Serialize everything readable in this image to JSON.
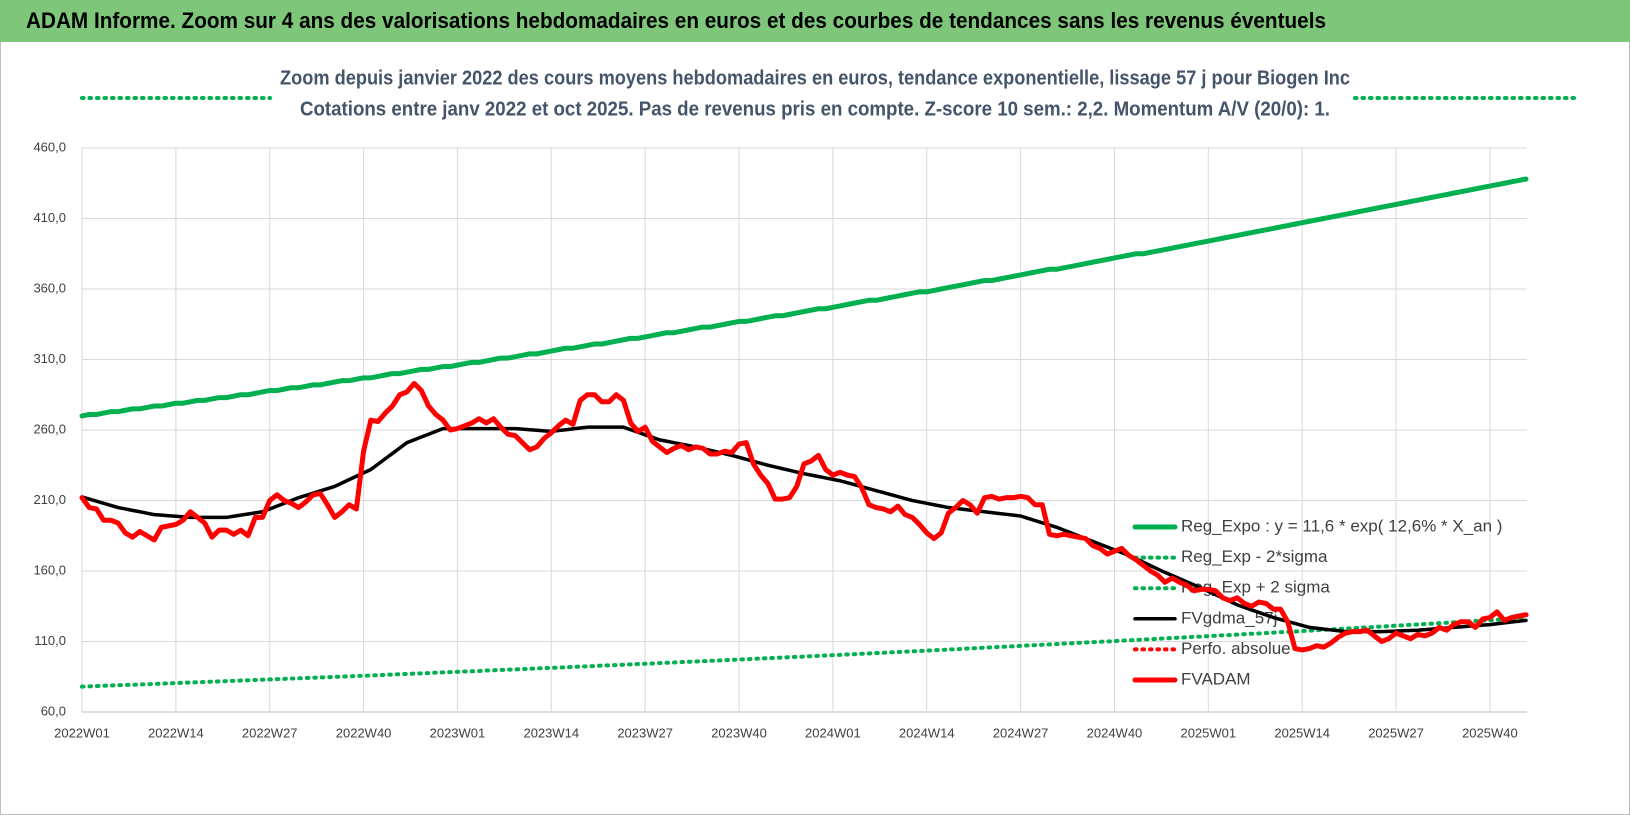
{
  "chart_data": {
    "type": "line",
    "title": "ADAM Informe. Zoom sur 4 ans des valorisations hebdomadaires en euros et des courbes de tendances sans les revenus éventuels",
    "subtitle": [
      "Zoom depuis janvier 2022 des cours moyens hebdomadaires en euros, tendance exponentielle, lissage 57 j pour Biogen Inc",
      "Cotations entre janv 2022 et oct 2025. Pas de revenus pris en compte. Z-score 10 sem.: 2,2. Momentum A/V (20/0): 1."
    ],
    "categories": [
      "2022W01",
      null,
      null,
      null,
      null,
      null,
      null,
      null,
      null,
      null,
      null,
      null,
      null,
      "2022W14",
      null,
      null,
      null,
      null,
      null,
      null,
      null,
      null,
      null,
      null,
      null,
      null,
      "2022W27",
      null,
      null,
      null,
      null,
      null,
      null,
      null,
      null,
      null,
      null,
      null,
      null,
      "2022W40",
      null,
      null,
      null,
      null,
      null,
      null,
      null,
      null,
      null,
      null,
      null,
      null,
      "2023W01",
      null,
      null,
      null,
      null,
      null,
      null,
      null,
      null,
      null,
      null,
      null,
      null,
      "2023W14",
      null,
      null,
      null,
      null,
      null,
      null,
      null,
      null,
      null,
      null,
      null,
      null,
      "2023W27",
      null,
      null,
      null,
      null,
      null,
      null,
      null,
      null,
      null,
      null,
      null,
      null,
      "2023W40",
      null,
      null,
      null,
      null,
      null,
      null,
      null,
      null,
      null,
      null,
      null,
      null,
      "2024W01",
      null,
      null,
      null,
      null,
      null,
      null,
      null,
      null,
      null,
      null,
      null,
      null,
      "2024W14",
      null,
      null,
      null,
      null,
      null,
      null,
      null,
      null,
      null,
      null,
      null,
      null,
      "2024W27",
      null,
      null,
      null,
      null,
      null,
      null,
      null,
      null,
      null,
      null,
      null,
      null,
      "2024W40",
      null,
      null,
      null,
      null,
      null,
      null,
      null,
      null,
      null,
      null,
      null,
      null,
      "2025W01",
      null,
      null,
      null,
      null,
      null,
      null,
      null,
      null,
      null,
      null,
      null,
      null,
      "2025W14",
      null,
      null,
      null,
      null,
      null,
      null,
      null,
      null,
      null,
      null,
      null,
      null,
      "2025W27",
      null,
      null,
      null,
      null,
      null,
      null,
      null,
      null,
      null,
      null,
      null,
      null,
      "2025W40",
      null,
      null,
      null,
      null,
      null
    ],
    "ylim": [
      60,
      460
    ],
    "yticks": [
      {
        "value": 60,
        "label": "60,0"
      },
      {
        "value": 110,
        "label": "110,0"
      },
      {
        "value": 160,
        "label": "160,0"
      },
      {
        "value": 210,
        "label": "210,0"
      },
      {
        "value": 260,
        "label": "260,0"
      },
      {
        "value": 310,
        "label": "310,0"
      },
      {
        "value": 360,
        "label": "360,0"
      },
      {
        "value": 410,
        "label": "410,0"
      },
      {
        "value": 460,
        "label": "460,0"
      }
    ],
    "grid": true,
    "legend": "right",
    "series": [
      {
        "name": "Reg_Expo : y = 11,6 * exp( 12,6% *  X_an )",
        "color": "#00b050",
        "style": "solid",
        "width": 5,
        "values": [
          270,
          271,
          271,
          272,
          273,
          273,
          274,
          275,
          275,
          276,
          277,
          277,
          278,
          279,
          279,
          280,
          281,
          281,
          282,
          283,
          283,
          284,
          285,
          285,
          286,
          287,
          288,
          288,
          289,
          290,
          290,
          291,
          292,
          292,
          293,
          294,
          295,
          295,
          296,
          297,
          297,
          298,
          299,
          300,
          300,
          301,
          302,
          303,
          303,
          304,
          305,
          305,
          306,
          307,
          308,
          308,
          309,
          310,
          311,
          311,
          312,
          313,
          314,
          314,
          315,
          316,
          317,
          318,
          318,
          319,
          320,
          321,
          321,
          322,
          323,
          324,
          325,
          325,
          326,
          327,
          328,
          329,
          329,
          330,
          331,
          332,
          333,
          333,
          334,
          335,
          336,
          337,
          337,
          338,
          339,
          340,
          341,
          341,
          342,
          343,
          344,
          345,
          346,
          346,
          347,
          348,
          349,
          350,
          351,
          352,
          352,
          353,
          354,
          355,
          356,
          357,
          358,
          358,
          359,
          360,
          361,
          362,
          363,
          364,
          365,
          366,
          366,
          367,
          368,
          369,
          370,
          371,
          372,
          373,
          374,
          374,
          375,
          376,
          377,
          378,
          379,
          380,
          381,
          382,
          383,
          384,
          385,
          385,
          386,
          387,
          388,
          389,
          390,
          391,
          392,
          393,
          394,
          395,
          396,
          397,
          398,
          399,
          400,
          401,
          402,
          403,
          404,
          405,
          406,
          407,
          408,
          409,
          410,
          411,
          412,
          413,
          414,
          415,
          416,
          417,
          418,
          419,
          420,
          421,
          422,
          423,
          424,
          425,
          426,
          427,
          428,
          429,
          430,
          431,
          432,
          433,
          434,
          435,
          436,
          437,
          438
        ]
      },
      {
        "name": "Reg_Exp - 2*sigma",
        "color": "#00b050",
        "style": "dotted",
        "width": 4,
        "values": [
          78.0,
          78.2,
          78.4,
          78.6,
          78.8,
          79.0,
          79.2,
          79.3,
          79.5,
          79.7,
          79.9,
          80.1,
          80.3,
          80.5,
          80.7,
          80.9,
          81.1,
          81.3,
          81.5,
          81.7,
          81.9,
          82.1,
          82.3,
          82.5,
          82.7,
          82.9,
          83.1,
          83.3,
          83.5,
          83.7,
          83.9,
          84.1,
          84.3,
          84.5,
          84.7,
          84.9,
          85.1,
          85.3,
          85.5,
          85.7,
          85.9,
          86.1,
          86.3,
          86.6,
          86.8,
          87.0,
          87.2,
          87.4,
          87.6,
          87.9,
          88.1,
          88.3,
          88.5,
          88.7,
          88.9,
          89.1,
          89.4,
          89.6,
          89.8,
          90.0,
          90.2,
          90.4,
          90.7,
          90.9,
          91.1,
          91.3,
          91.5,
          91.7,
          92.0,
          92.2,
          92.4,
          92.6,
          92.9,
          93.1,
          93.3,
          93.5,
          93.8,
          94.0,
          94.2,
          94.4,
          94.7,
          94.9,
          95.1,
          95.4,
          95.6,
          95.8,
          96.0,
          96.3,
          96.5,
          96.7,
          97.0,
          97.2,
          97.4,
          97.7,
          97.9,
          98.2,
          98.4,
          98.6,
          98.9,
          99.1,
          99.3,
          99.6,
          99.8,
          100.1,
          100.3,
          100.5,
          100.8,
          101.0,
          101.3,
          101.5,
          101.8,
          102.0,
          102.3,
          102.5,
          102.8,
          103.0,
          103.3,
          103.5,
          103.8,
          104.0,
          104.3,
          104.5,
          104.8,
          105.1,
          105.3,
          105.6,
          105.9,
          106.1,
          106.4,
          106.6,
          106.9,
          107.2,
          107.4,
          107.7,
          107.9,
          108.2,
          108.5,
          108.7,
          109.0,
          109.3,
          109.5,
          109.8,
          110.0,
          110.3,
          110.6,
          110.8,
          111.1,
          111.4,
          111.6,
          111.9,
          112.2,
          112.5,
          112.7,
          113.0,
          113.3,
          113.5,
          113.8,
          114.1,
          114.4,
          114.6,
          114.9,
          115.2,
          115.5,
          115.7,
          116.0,
          116.3,
          116.6,
          116.8,
          117.1,
          117.4,
          117.7,
          118.0,
          118.3,
          118.6,
          118.9,
          119.2,
          119.4,
          119.7,
          120.0,
          120.3,
          120.6,
          120.9,
          121.2,
          121.5,
          121.8,
          122.1,
          122.4,
          122.7,
          123.0,
          123.3,
          123.6,
          123.9,
          124.2,
          124.5,
          124.8,
          125.1,
          125.4,
          125.7,
          126.0,
          126.3,
          126.6
        ]
      },
      {
        "name": "Reg_Exp + 2 sigma",
        "color": "#00b050",
        "style": "dotted",
        "width": 4
      },
      {
        "name": "FVgdma_57j",
        "color": "#000000",
        "style": "solid",
        "width": 3.5,
        "values": [
          212.5,
          211,
          209.5,
          208,
          206.5,
          205,
          204,
          203,
          202,
          201,
          200,
          199.6,
          199.2,
          198.8,
          198.4,
          198,
          198,
          198,
          198,
          198,
          198,
          198.8,
          199.6,
          200.4,
          201.2,
          202,
          204,
          206,
          208,
          210,
          212,
          213.6,
          215.2,
          216.8,
          218.4,
          220,
          222.4,
          224.8,
          227.2,
          229.6,
          232,
          235.8,
          239.6,
          243.4,
          247.2,
          251,
          253,
          255,
          257,
          259,
          261,
          261,
          261,
          261,
          261,
          261,
          261,
          261,
          261,
          261,
          261,
          260.6,
          260.2,
          259.8,
          259.4,
          259,
          259.6,
          260.2,
          260.8,
          261.4,
          262,
          262,
          262,
          262,
          262,
          262,
          260.2,
          258.4,
          256.6,
          254.8,
          253,
          252,
          251,
          250,
          249,
          248,
          246.8,
          245.6,
          244.4,
          243.2,
          242,
          240.6,
          239.2,
          237.8,
          236.4,
          235,
          233.8,
          232.6,
          231.4,
          230.2,
          229,
          228,
          227,
          226,
          225,
          224,
          222.6,
          221.2,
          219.8,
          218.4,
          217,
          215.6,
          214.2,
          212.8,
          211.4,
          210,
          209,
          208,
          207,
          206,
          205,
          204.4,
          203.8,
          203.2,
          202.6,
          202,
          201.4,
          200.8,
          200.2,
          199.6,
          199,
          197.4,
          195.8,
          194.2,
          192.6,
          191,
          189,
          187,
          185,
          183,
          181,
          179,
          177,
          175,
          173,
          171,
          168.6,
          166.2,
          163.8,
          161.4,
          159,
          156.8,
          154.6,
          152.4,
          150.2,
          148,
          145.6,
          143.2,
          140.8,
          138.4,
          136,
          134.2,
          132.4,
          130.6,
          128.8,
          127,
          125.6,
          124.2,
          122.8,
          121.4,
          120,
          119.4,
          118.8,
          118.2,
          117.6,
          117,
          117,
          117,
          117,
          117,
          117,
          117.2,
          117.4,
          117.6,
          117.8,
          118,
          118.4,
          118.8,
          119.2,
          119.6,
          120,
          120.4,
          120.8,
          121.2,
          121.6,
          122,
          122.6,
          123.2,
          123.8,
          124.4,
          125
        ]
      },
      {
        "name": "Perfo. absolue",
        "color": "#ff0000",
        "style": "dotted",
        "width": 4
      },
      {
        "name": "FVADAM",
        "color": "#ff0000",
        "style": "solid",
        "width": 5,
        "values": [
          212,
          205,
          204,
          196,
          196,
          194,
          187,
          184,
          188,
          185,
          182,
          191,
          192,
          193,
          196,
          202,
          198,
          194,
          184,
          189,
          189,
          186,
          189,
          185,
          198,
          198,
          210,
          214,
          210,
          208,
          205,
          209,
          214,
          215,
          207,
          198,
          202,
          207,
          204,
          245,
          267,
          266,
          272,
          277,
          285,
          287,
          293,
          288,
          277,
          271,
          267,
          260,
          261,
          263,
          265,
          268,
          265,
          268,
          262,
          257,
          256,
          251,
          246,
          248,
          254,
          258,
          263,
          267,
          264,
          281,
          285,
          285,
          280,
          280,
          285,
          281,
          265,
          259,
          262,
          252,
          248,
          244,
          247,
          249,
          246,
          248,
          247,
          243,
          243,
          245,
          244,
          250,
          251,
          236,
          228,
          222,
          211,
          211,
          212,
          220,
          236,
          238,
          242,
          232,
          228,
          230,
          228,
          227,
          219,
          207,
          205,
          204,
          202,
          206,
          200,
          198,
          193,
          187,
          183,
          187,
          201,
          205,
          210,
          207,
          201,
          212,
          213,
          211,
          212,
          212,
          213,
          212,
          207,
          207,
          186,
          185,
          186,
          185,
          184,
          183,
          178,
          176,
          172,
          174,
          176,
          171,
          168,
          164,
          160,
          157,
          152,
          155,
          152,
          150,
          146,
          147,
          147,
          146,
          141,
          139,
          141,
          137,
          135,
          138,
          137,
          133,
          133,
          124,
          105,
          104,
          105,
          107,
          106,
          109,
          113,
          116,
          117,
          117,
          118,
          114,
          110,
          112,
          116,
          114,
          112,
          115,
          114,
          116,
          120,
          118,
          122,
          124,
          124,
          120,
          126,
          127,
          131,
          125,
          127,
          128,
          129
        ]
      }
    ]
  }
}
